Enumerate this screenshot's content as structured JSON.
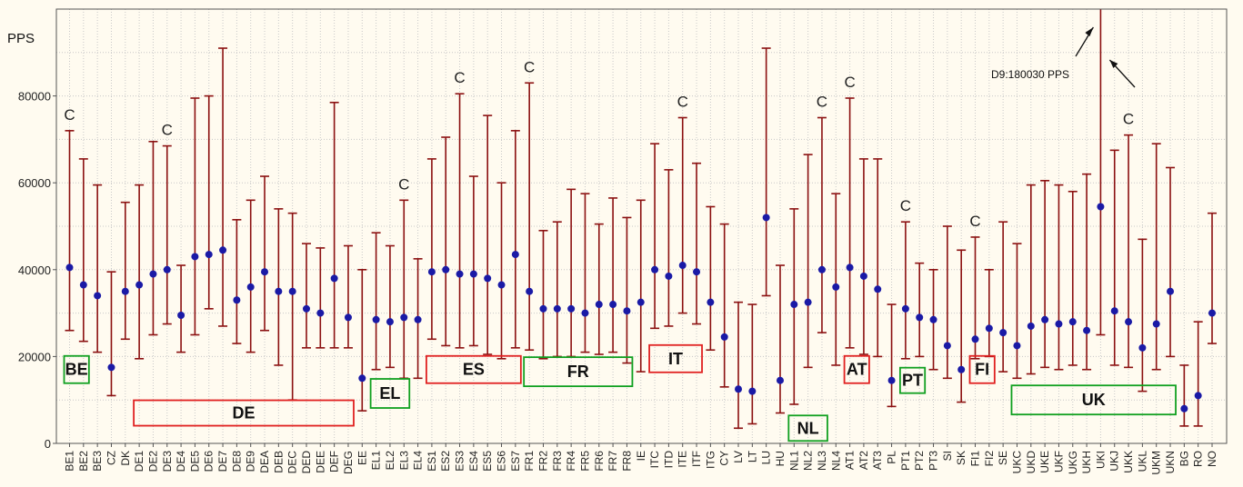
{
  "chart_data": {
    "type": "errorbar",
    "ylabel": "PPS",
    "ylim": [
      0,
      100000
    ],
    "yticks": [
      0,
      20000,
      40000,
      60000,
      80000
    ],
    "ytick_labels": [
      "0",
      "20000",
      "40000",
      "60000",
      "80000"
    ],
    "grid": "dotted vertical and horizontal",
    "colors": {
      "point": "#1a1aa6",
      "bar": "#8b1010",
      "box_red": "#e02020",
      "box_green": "#10a020"
    },
    "categories": [
      "BE1",
      "BE2",
      "BE3",
      "CZ",
      "DK",
      "DE1",
      "DE2",
      "DE3",
      "DE4",
      "DE5",
      "DE6",
      "DE7",
      "DE8",
      "DE9",
      "DEA",
      "DEB",
      "DEC",
      "DED",
      "DEE",
      "DEF",
      "DEG",
      "EE",
      "EL1",
      "EL2",
      "EL3",
      "EL4",
      "ES1",
      "ES2",
      "ES3",
      "ES4",
      "ES5",
      "ES6",
      "ES7",
      "FR1",
      "FR2",
      "FR3",
      "FR4",
      "FR5",
      "FR6",
      "FR7",
      "FR8",
      "IE",
      "ITC",
      "ITD",
      "ITE",
      "ITF",
      "ITG",
      "CY",
      "LV",
      "LT",
      "LU",
      "HU",
      "NL1",
      "NL2",
      "NL3",
      "NL4",
      "AT1",
      "AT2",
      "AT3",
      "PL",
      "PT1",
      "PT2",
      "PT3",
      "SI",
      "SK",
      "FI1",
      "FI2",
      "SE",
      "UKC",
      "UKD",
      "UKE",
      "UKF",
      "UKG",
      "UKH",
      "UKI",
      "UKJ",
      "UKK",
      "UKL",
      "UKM",
      "UKN",
      "BG",
      "RO",
      "NO"
    ],
    "mean": [
      40500,
      36500,
      34000,
      17500,
      35000,
      36500,
      39000,
      40000,
      29500,
      43000,
      43500,
      44500,
      33000,
      36000,
      39500,
      35000,
      35000,
      31000,
      30000,
      38000,
      29000,
      15000,
      28500,
      28000,
      29000,
      28500,
      39500,
      40000,
      39000,
      39000,
      38000,
      36500,
      43500,
      35000,
      31000,
      31000,
      31000,
      30000,
      32000,
      32000,
      30500,
      32500,
      40000,
      38500,
      41000,
      39500,
      32500,
      24500,
      12500,
      12000,
      52000,
      14500,
      32000,
      32500,
      40000,
      36000,
      40500,
      38500,
      35500,
      14500,
      31000,
      29000,
      28500,
      22500,
      17000,
      24000,
      26500,
      25500,
      22500,
      27000,
      28500,
      27500,
      28000,
      26000,
      54500,
      30500,
      28000,
      22000,
      27500,
      35000,
      8000,
      11000,
      30000
    ],
    "lower": [
      26000,
      23500,
      21000,
      11000,
      24000,
      19500,
      25000,
      27500,
      21000,
      25000,
      31000,
      27000,
      23000,
      21000,
      26000,
      18000,
      10000,
      22000,
      22000,
      22000,
      22000,
      7500,
      17000,
      17500,
      15000,
      15000,
      24000,
      22500,
      22000,
      22500,
      20500,
      19500,
      22000,
      21500,
      19500,
      20000,
      20000,
      21000,
      20500,
      21000,
      18500,
      16500,
      26500,
      27000,
      30000,
      27500,
      21500,
      13000,
      3500,
      4500,
      34000,
      7000,
      9000,
      17500,
      25500,
      18000,
      22000,
      20500,
      20000,
      8500,
      19500,
      20000,
      17000,
      15000,
      9500,
      19500,
      20000,
      16500,
      15000,
      16000,
      17500,
      17000,
      18000,
      17000,
      25000,
      18000,
      17500,
      12000,
      17000,
      20000,
      4000,
      4000,
      23000
    ],
    "upper": [
      72000,
      65500,
      59500,
      39500,
      55500,
      59500,
      69500,
      68500,
      41000,
      79500,
      80000,
      91000,
      51500,
      56000,
      61500,
      54000,
      53000,
      46000,
      45000,
      78500,
      45500,
      40000,
      48500,
      45500,
      56000,
      42500,
      65500,
      70500,
      80500,
      61500,
      75500,
      60000,
      72000,
      83000,
      49000,
      51000,
      58500,
      57500,
      50500,
      56500,
      52000,
      56000,
      69000,
      63000,
      75000,
      64500,
      54500,
      50500,
      32500,
      32000,
      91000,
      41000,
      54000,
      66500,
      75000,
      57500,
      79500,
      65500,
      65500,
      32000,
      51000,
      41500,
      40000,
      50000,
      44500,
      47500,
      40000,
      51000,
      46000,
      59500,
      60500,
      59500,
      58000,
      62000,
      180030,
      67500,
      71000,
      47000,
      69000,
      63500,
      18000,
      28000,
      53000
    ],
    "c_markers": [
      "BE1",
      "DE3",
      "EL3",
      "ES3",
      "FR1",
      "ITE",
      "NL3",
      "AT1",
      "PT1",
      "FI1",
      "UKK"
    ],
    "annotation": "D9:180030 PPS",
    "region_boxes": [
      {
        "label": "BE",
        "color": "green",
        "anchor": "BE1"
      },
      {
        "label": "DE",
        "color": "red",
        "anchor": "DE1-DEG"
      },
      {
        "label": "EL",
        "color": "green",
        "anchor": "EL1-EL3"
      },
      {
        "label": "ES",
        "color": "red",
        "anchor": "ES1-ES7"
      },
      {
        "label": "FR",
        "color": "green",
        "anchor": "FR1-FR8"
      },
      {
        "label": "IT",
        "color": "red",
        "anchor": "ITC-ITF"
      },
      {
        "label": "NL",
        "color": "green",
        "anchor": "NL1-NL3"
      },
      {
        "label": "AT",
        "color": "red",
        "anchor": "AT1-AT2"
      },
      {
        "label": "PT",
        "color": "green",
        "anchor": "PT1-PT2"
      },
      {
        "label": "FI",
        "color": "red",
        "anchor": "FI1-FI2"
      },
      {
        "label": "UK",
        "color": "green",
        "anchor": "UKC-UKN"
      }
    ]
  }
}
